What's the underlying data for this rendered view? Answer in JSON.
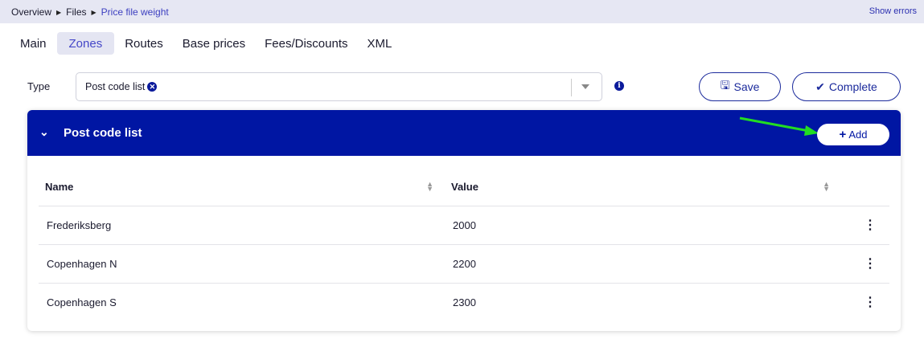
{
  "breadcrumb": {
    "items": [
      "Overview",
      "Files"
    ],
    "current": "Price file weight"
  },
  "show_errors": "Show errors",
  "tabs": [
    {
      "label": "Main"
    },
    {
      "label": "Zones",
      "active": true
    },
    {
      "label": "Routes"
    },
    {
      "label": "Base prices"
    },
    {
      "label": "Fees/Discounts"
    },
    {
      "label": "XML"
    }
  ],
  "type_field": {
    "label": "Type",
    "value": "Post code list"
  },
  "buttons": {
    "save": "Save",
    "complete": "Complete",
    "add": "Add"
  },
  "panel": {
    "title": "Post code list"
  },
  "table": {
    "columns": [
      "Name",
      "Value"
    ],
    "rows": [
      {
        "name": "Frederiksberg",
        "value": "2000"
      },
      {
        "name": "Copenhagen N",
        "value": "2200"
      },
      {
        "name": "Copenhagen S",
        "value": "2300"
      }
    ]
  },
  "colors": {
    "brand": "#0016a3",
    "annotation_arrow": "#22dd22"
  }
}
